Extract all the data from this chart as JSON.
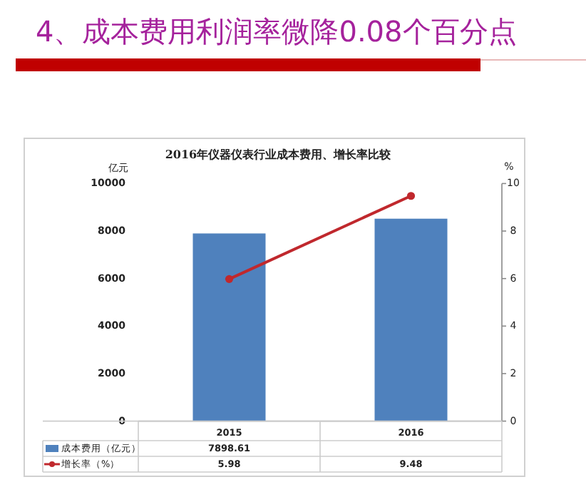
{
  "chart_data": {
    "type": "bar",
    "title": "4、成本费用利润率微降0.08个百分点",
    "subtitle": "2016年仪器仪表行业成本费用、增长率比较",
    "ylabel": "亿元",
    "y2label": "%",
    "categories": [
      "2015",
      "2016"
    ],
    "series": [
      {
        "name": "成本费用（亿元）",
        "color": "#4f81bd",
        "values": [
          7898.61,
          8520
        ],
        "value_labels": [
          "7898.61",
          null
        ]
      },
      {
        "name": "增长率（%）",
        "type": "line",
        "axis": "y2",
        "color": "#c0282d",
        "values": [
          5.98,
          9.48
        ],
        "value_labels": [
          "5.98",
          "9.48"
        ]
      }
    ],
    "ylim": [
      0,
      10000
    ],
    "yticks": [
      0,
      2000,
      4000,
      6000,
      8000,
      10000
    ],
    "y2lim": [
      0,
      10
    ],
    "y2ticks": [
      0,
      2,
      4,
      6,
      8,
      10
    ],
    "legend": "bottom",
    "marker": "circle"
  }
}
